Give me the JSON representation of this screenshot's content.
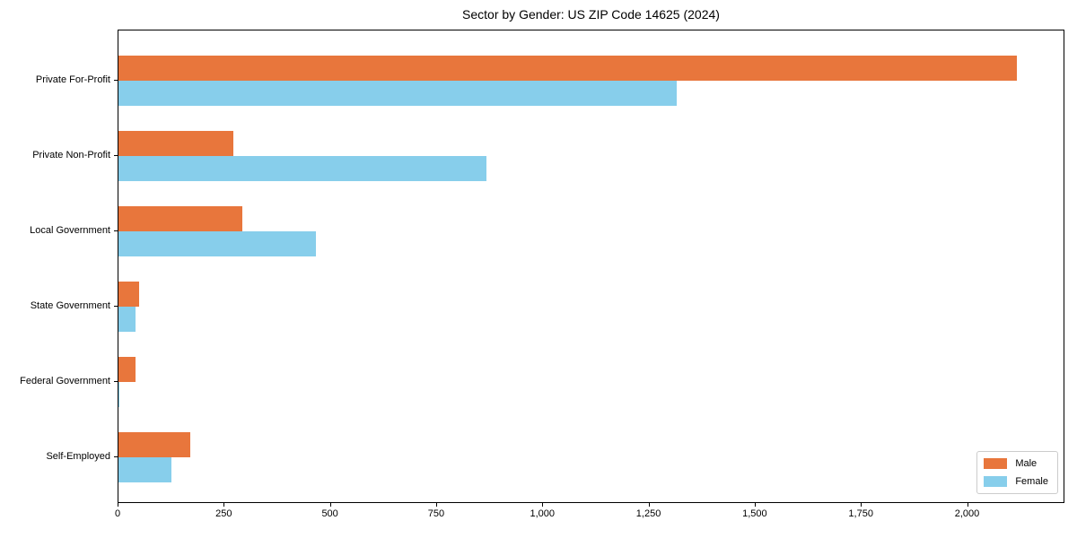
{
  "title": "Sector by Gender: US ZIP Code 14625 (2024)",
  "chart_data": {
    "type": "bar",
    "orientation": "horizontal",
    "title": "Sector by Gender: US ZIP Code 14625 (2024)",
    "xlabel": "",
    "ylabel": "",
    "categories": [
      "Private For-Profit",
      "Private Non-Profit",
      "Local Government",
      "State Government",
      "Federal Government",
      "Self-Employed"
    ],
    "series": [
      {
        "name": "Male",
        "color": "#e8763c",
        "values": [
          2116,
          270,
          292,
          48,
          41,
          168
        ]
      },
      {
        "name": "Female",
        "color": "#87ceeb",
        "values": [
          1314,
          866,
          465,
          41,
          2,
          125
        ]
      }
    ],
    "xlim": [
      0,
      2225
    ],
    "xticks": [
      0,
      250,
      500,
      750,
      1000,
      1250,
      1500,
      1750,
      2000
    ],
    "xtick_labels": [
      "0",
      "250",
      "500",
      "750",
      "1,000",
      "1,250",
      "1,500",
      "1,750",
      "2,000"
    ],
    "grid": false,
    "legend": {
      "position": "lower right",
      "entries": [
        "Male",
        "Female"
      ]
    }
  }
}
